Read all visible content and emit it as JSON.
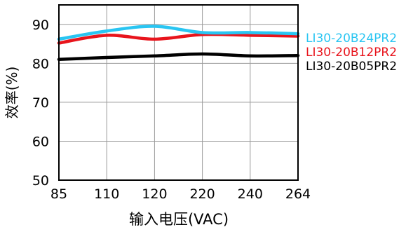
{
  "chart_data": {
    "type": "line",
    "title": "",
    "xlabel": "输入电压(VAC)",
    "ylabel": "效率(%)",
    "ylim": [
      50,
      95
    ],
    "categories": [
      "85",
      "110",
      "120",
      "220",
      "240",
      "264"
    ],
    "yticks": [
      "50",
      "60",
      "70",
      "80",
      "90"
    ],
    "grid": true,
    "legend_position": "right",
    "series": [
      {
        "name": "LI30-20B24PR2",
        "color": "#29c5f2",
        "values": [
          86.2,
          88.3,
          89.5,
          87.9,
          87.9,
          87.6
        ]
      },
      {
        "name": "LI30-20B12PR2",
        "color": "#e8141c",
        "values": [
          85.2,
          87.2,
          86.2,
          87.4,
          87.2,
          87.0
        ]
      },
      {
        "name": "LI30-20B05PR2",
        "color": "#000000",
        "values": [
          81.0,
          81.5,
          81.9,
          82.4,
          81.9,
          82.0
        ]
      }
    ]
  }
}
